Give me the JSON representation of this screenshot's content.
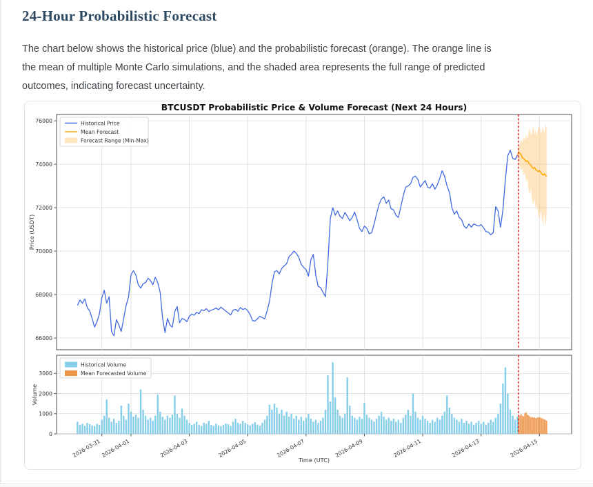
{
  "page": {
    "heading": "24-Hour Probabilistic Forecast",
    "description_lines": [
      "The chart below shows the historical price (blue) and the probabilistic forecast (orange). The orange line is",
      "the mean of multiple Monte Carlo simulations, and the shaded area represents the full range of predicted",
      "outcomes, indicating forecast uncertainty."
    ]
  },
  "chart_data": {
    "type": "line",
    "title": "BTCUSDT Probabilistic Price & Volume Forecast (Next 24 Hours)",
    "xlabel": "Time (UTC)",
    "time_origin": "2026-03-30 00:00",
    "xlim_hours": [
      -13.25,
      410.5
    ],
    "xticks": [
      {
        "t": 24,
        "label": "2026-03-31"
      },
      {
        "t": 48,
        "label": "2026-04-01"
      },
      {
        "t": 96,
        "label": "2026-04-03"
      },
      {
        "t": 144,
        "label": "2026-04-05"
      },
      {
        "t": 192,
        "label": "2026-04-07"
      },
      {
        "t": 240,
        "label": "2026-04-09"
      },
      {
        "t": 288,
        "label": "2026-04-11"
      },
      {
        "t": 336,
        "label": "2026-04-13"
      },
      {
        "t": 384,
        "label": "2026-04-15"
      }
    ],
    "forecast_start_hour": 366.7,
    "price_axis": {
      "ylabel": "Price (USDT)",
      "ylim": [
        65460,
        76290
      ],
      "yticks": [
        66000,
        68000,
        70000,
        72000,
        74000,
        76000
      ],
      "legend": [
        "Historical Price",
        "Mean Forecast",
        "Forecast Range (Min-Max)"
      ]
    },
    "volume_axis": {
      "ylabel": "Volume",
      "ylim": [
        0,
        3900
      ],
      "yticks": [
        0,
        1000,
        2000,
        3000
      ],
      "legend": [
        "Historical Volume",
        "Mean Forecasted Volume"
      ]
    },
    "history": {
      "t_start": 4,
      "t_step": 2,
      "price": [
        67500,
        67750,
        67600,
        67800,
        67400,
        67250,
        66900,
        66500,
        66750,
        67100,
        67850,
        68200,
        67600,
        67900,
        66300,
        66100,
        66850,
        66600,
        66300,
        66900,
        67500,
        67900,
        68900,
        69100,
        68900,
        68450,
        68300,
        68500,
        68550,
        68750,
        68650,
        68450,
        68800,
        68550,
        68100,
        66900,
        66250,
        66900,
        66600,
        66500,
        67200,
        67450,
        66700,
        66900,
        66850,
        66750,
        67000,
        67100,
        67050,
        67180,
        67120,
        67300,
        67260,
        67350,
        67220,
        67280,
        67320,
        67380,
        67300,
        67420,
        67330,
        67240,
        67150,
        67060,
        67280,
        67320,
        67230,
        67400,
        67310,
        67360,
        67260,
        67080,
        66800,
        66780,
        66880,
        67000,
        66940,
        66880,
        67250,
        67700,
        68500,
        69050,
        69100,
        68950,
        69200,
        69320,
        69420,
        69750,
        69850,
        70000,
        69900,
        69720,
        69400,
        69250,
        69150,
        68850,
        69600,
        69850,
        68900,
        68380,
        68320,
        68100,
        67900,
        69500,
        71500,
        72000,
        71650,
        71850,
        71600,
        71500,
        71780,
        71600,
        71400,
        71550,
        71800,
        71450,
        71050,
        70900,
        71150,
        71050,
        70800,
        70850,
        71250,
        71700,
        72150,
        72400,
        72500,
        72200,
        72350,
        71950,
        71900,
        71650,
        71550,
        72050,
        72550,
        72950,
        73000,
        73100,
        73400,
        73450,
        73300,
        72950,
        73100,
        73250,
        72950,
        72900,
        73100,
        72850,
        73050,
        73350,
        73700,
        73450,
        73000,
        72700,
        72000,
        71700,
        71850,
        71550,
        71450,
        71150,
        71050,
        71250,
        71100,
        71250,
        71200,
        71150,
        71220,
        71080,
        70900,
        70880,
        70750,
        70850,
        72050,
        71850,
        71100,
        71900,
        73300,
        74400,
        74650,
        74280,
        74220,
        74420
      ],
      "volume": [
        600,
        450,
        500,
        400,
        550,
        480,
        420,
        380,
        500,
        450,
        700,
        900,
        1700,
        800,
        600,
        750,
        550,
        650,
        1400,
        900,
        700,
        1500,
        1100,
        850,
        950,
        800,
        2200,
        1200,
        900,
        700,
        800,
        650,
        900,
        1950,
        1100,
        850,
        700,
        900,
        800,
        950,
        1900,
        1000,
        800,
        1250,
        900,
        700,
        550,
        450,
        500,
        600,
        450,
        400,
        550,
        500,
        650,
        450,
        400,
        500,
        420,
        380,
        450,
        520,
        480,
        400,
        600,
        750,
        550,
        500,
        650,
        550,
        480,
        420,
        500,
        580,
        460,
        400,
        550,
        700,
        900,
        1450,
        1200,
        1500,
        1300,
        1000,
        1200,
        900,
        1100,
        850,
        1000,
        750,
        900,
        700,
        850,
        650,
        800,
        1000,
        750,
        600,
        700,
        550,
        650,
        800,
        1200,
        2900,
        1600,
        3550,
        1800,
        1200,
        900,
        800,
        1000,
        2800,
        1400,
        900,
        800,
        700,
        850,
        750,
        1550,
        950,
        800,
        700,
        600,
        750,
        900,
        1100,
        850,
        700,
        800,
        650,
        750,
        600,
        700,
        550,
        800,
        950,
        1200,
        900,
        2000,
        1100,
        800,
        700,
        900,
        750,
        650,
        550,
        700,
        600,
        800,
        700,
        900,
        1100,
        1900,
        1300,
        1000,
        800,
        700,
        600,
        750,
        550,
        650,
        500,
        600,
        450,
        550,
        650,
        500,
        600,
        450,
        550,
        700,
        600,
        800,
        1000,
        1500,
        2500,
        3300,
        2000,
        1200,
        900,
        700,
        850
      ]
    },
    "forecast": {
      "t_start": 366,
      "t_step": 1,
      "mean": [
        74420,
        74560,
        74500,
        74430,
        74300,
        74260,
        74210,
        74120,
        74160,
        74090,
        74000,
        73950,
        73860,
        73800,
        73850,
        73760,
        73700,
        73660,
        73710,
        73640,
        73560,
        73500,
        73560,
        73500,
        73430
      ],
      "max": [
        74500,
        74780,
        74950,
        75150,
        74980,
        75250,
        75120,
        75380,
        75180,
        75420,
        75680,
        75320,
        75480,
        75780,
        75380,
        75580,
        75320,
        75680,
        75820,
        75420,
        75520,
        75720,
        75380,
        75820,
        75620
      ],
      "min": [
        74350,
        74120,
        73880,
        73680,
        73840,
        73480,
        73580,
        73180,
        73340,
        72880,
        72580,
        72900,
        72380,
        72080,
        72440,
        71880,
        72180,
        71680,
        71480,
        71880,
        71580,
        71180,
        71780,
        71080,
        71680
      ],
      "volume_t_start": 367,
      "volume": [
        850,
        920,
        980,
        900,
        870,
        1020,
        1080,
        960,
        920,
        870,
        820,
        840,
        800,
        820,
        780,
        800,
        820,
        840,
        800,
        770,
        740,
        720,
        690,
        660
      ]
    },
    "colors": {
      "historical_price": "#4169E1",
      "mean_forecast": "#FFA500",
      "forecast_range_fill": "#FFBF69",
      "historical_volume": "#87CEEB",
      "forecast_volume": "#EC9448",
      "forecast_start_line": "#E03131",
      "grid": "#DCDCDC",
      "spine": "#4D4D4D",
      "tick_label": "#333333"
    }
  }
}
